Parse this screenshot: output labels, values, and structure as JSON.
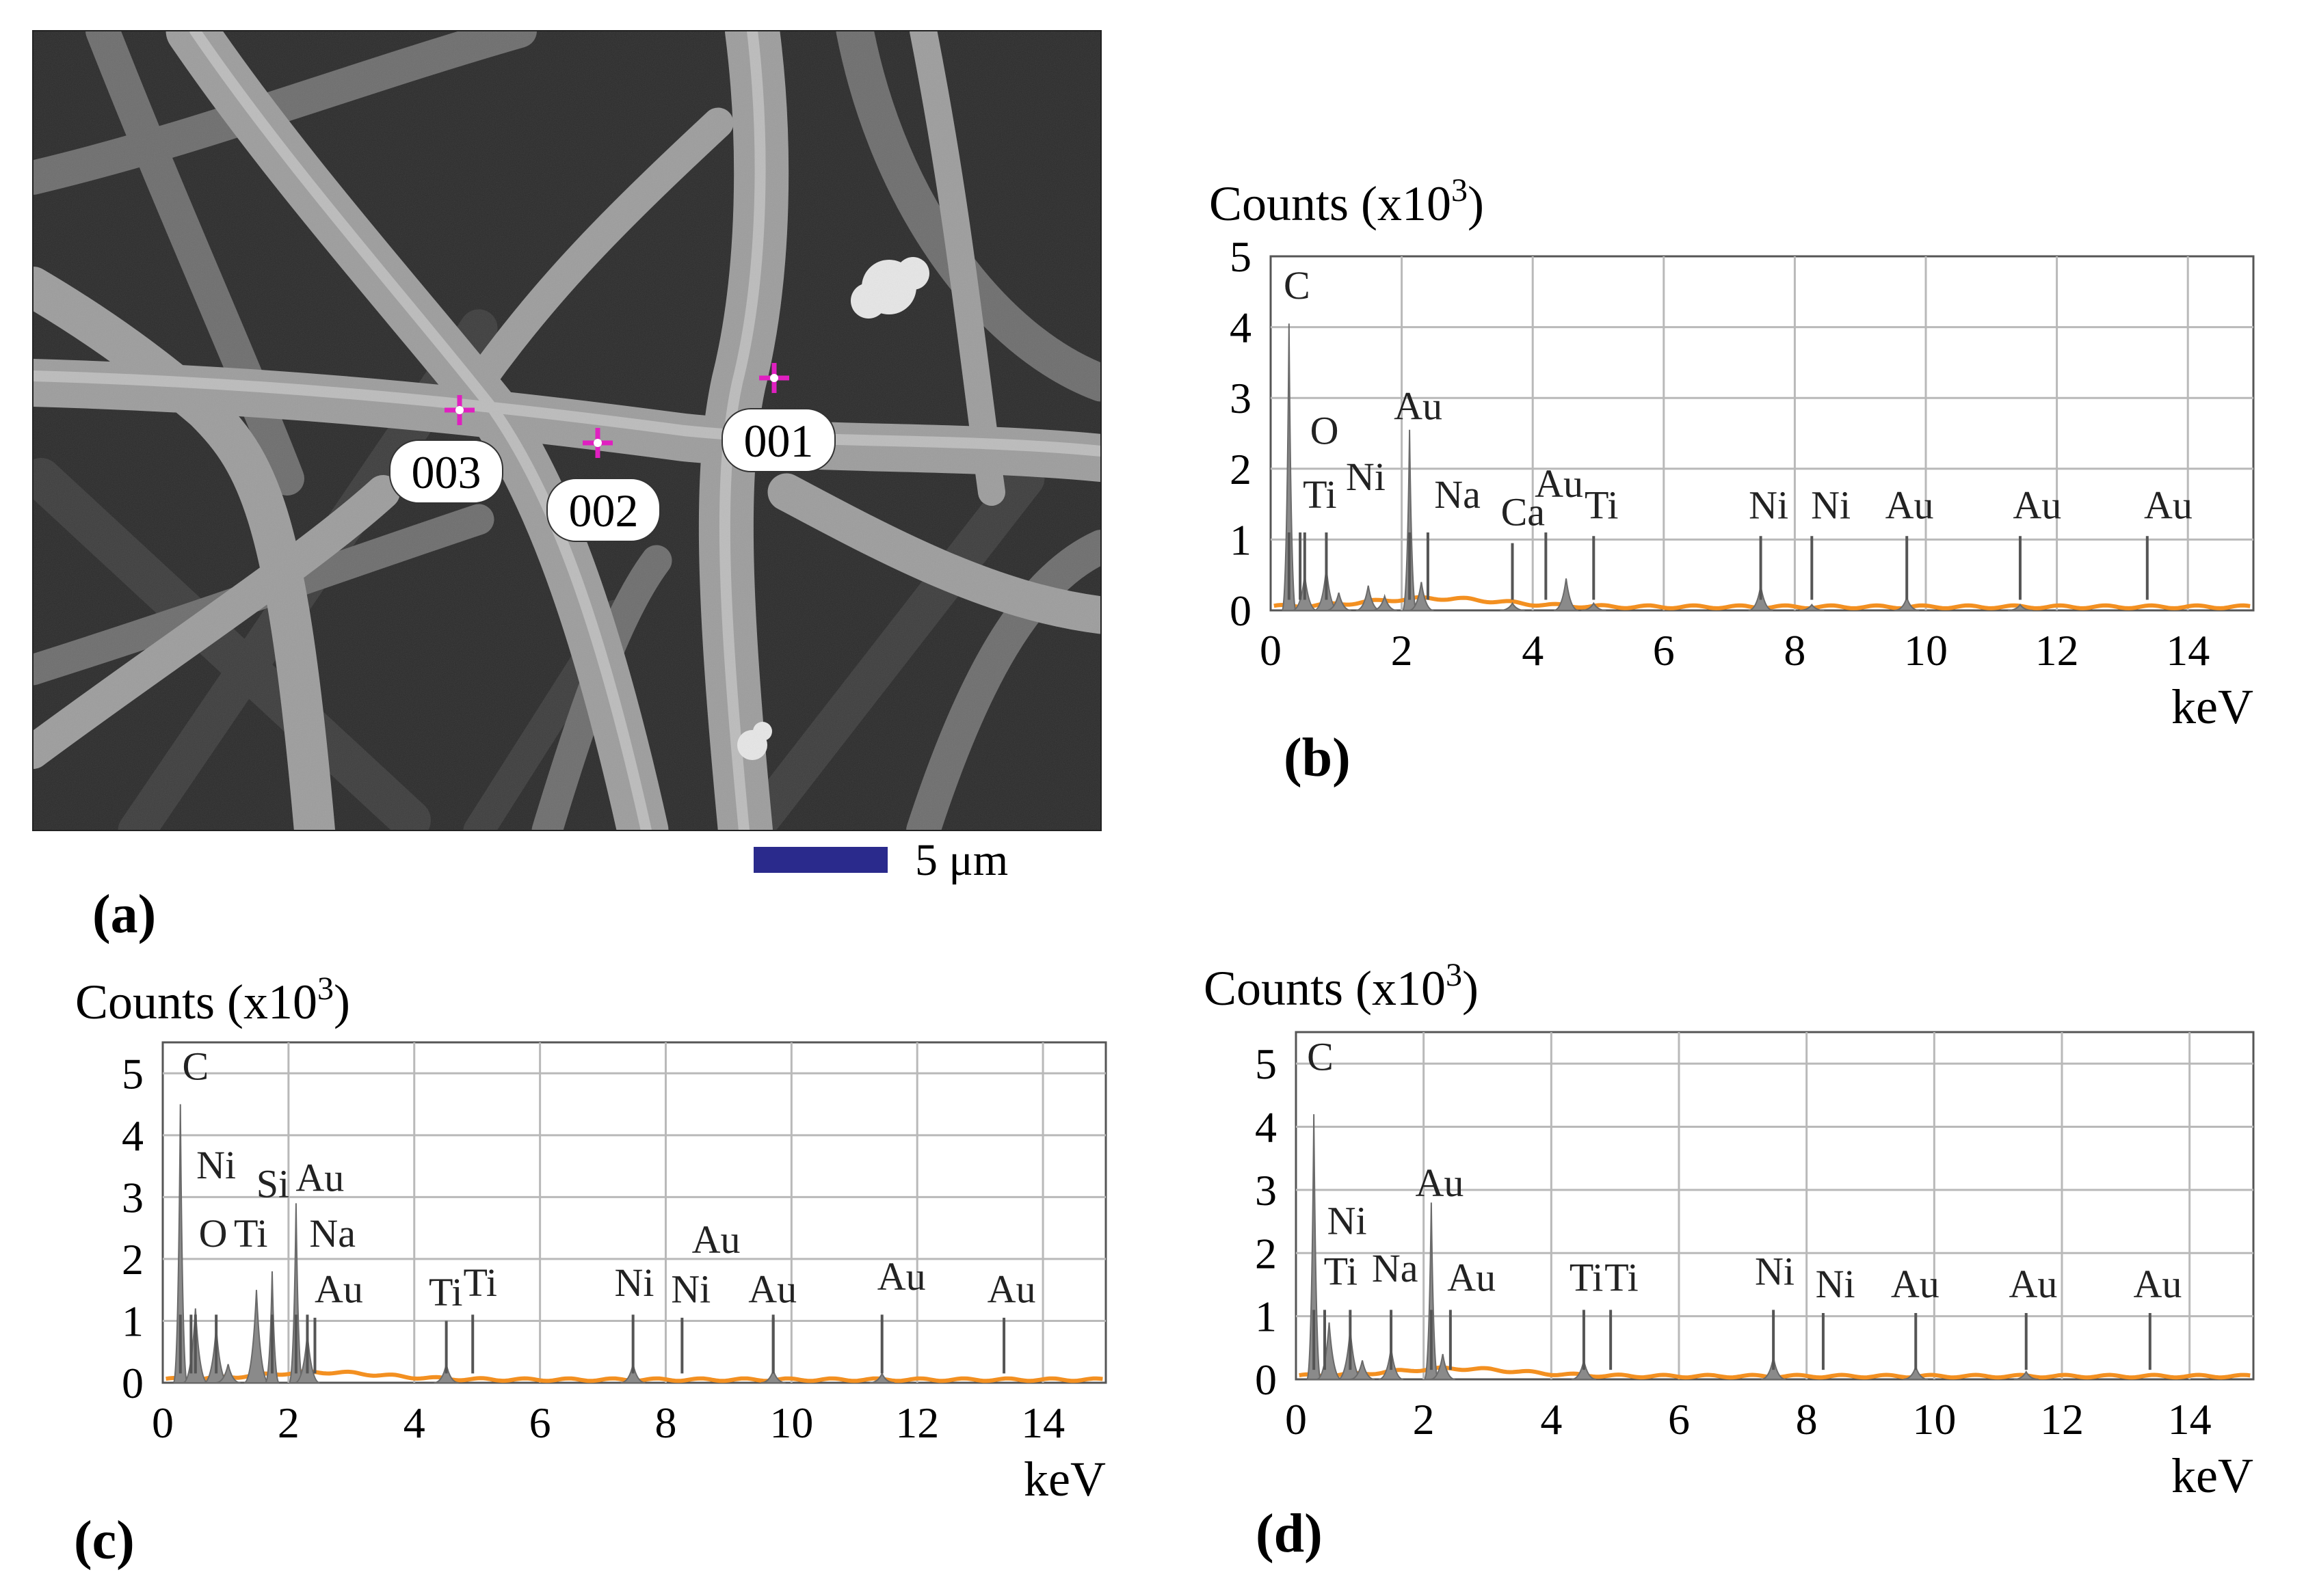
{
  "panel_labels": {
    "a": "(a)",
    "b": "(b)",
    "c": "(c)",
    "d": "(d)"
  },
  "micrograph": {
    "points": [
      "001",
      "002",
      "003"
    ],
    "scale_bar_label": "5 μm",
    "marker_color": "#e020c0",
    "scale_bar_color": "#2a2a8c"
  },
  "spectrum_colors": {
    "background_trace": "#f39021",
    "peak_fill": "#8a8a8a",
    "grid": "#b9b9b9"
  },
  "chart_data": [
    {
      "id": "b",
      "type": "area",
      "ylabel": "Counts (x10",
      "ylabel_sup": "3",
      "ylabel_end": ")",
      "xlabel": "keV",
      "xlim": [
        0,
        15
      ],
      "ylim": [
        0,
        5
      ],
      "xticks": [
        "0",
        "2",
        "4",
        "6",
        "8",
        "10",
        "12",
        "14"
      ],
      "yticks": [
        "0",
        "1",
        "2",
        "3",
        "4",
        "5"
      ],
      "grid": true,
      "peaks": [
        {
          "x": 0.28,
          "y": 4.05
        },
        {
          "x": 0.52,
          "y": 0.5
        },
        {
          "x": 0.85,
          "y": 0.6
        },
        {
          "x": 1.04,
          "y": 0.25
        },
        {
          "x": 1.49,
          "y": 0.35
        },
        {
          "x": 1.74,
          "y": 0.2
        },
        {
          "x": 2.12,
          "y": 2.55
        },
        {
          "x": 2.3,
          "y": 0.4
        },
        {
          "x": 3.69,
          "y": 0.1
        },
        {
          "x": 4.51,
          "y": 0.45
        },
        {
          "x": 4.93,
          "y": 0.1
        },
        {
          "x": 7.48,
          "y": 0.35
        },
        {
          "x": 8.26,
          "y": 0.08
        },
        {
          "x": 9.71,
          "y": 0.18
        },
        {
          "x": 11.44,
          "y": 0.08
        }
      ],
      "labels": [
        {
          "text": "C",
          "x": 0.4,
          "y": 4.4,
          "line": 0.28
        },
        {
          "text": "O",
          "x": 0.82,
          "y": 2.35,
          "line": 0.52
        },
        {
          "text": "Ti",
          "x": 0.75,
          "y": 1.45,
          "line": 0.45
        },
        {
          "text": "Ni",
          "x": 1.45,
          "y": 1.7,
          "line": 0.85
        },
        {
          "text": "Au",
          "x": 2.25,
          "y": 2.7,
          "line": 2.12
        },
        {
          "text": "Na",
          "x": 2.85,
          "y": 1.45,
          "line": 2.4
        },
        {
          "text": "Ca",
          "x": 3.85,
          "y": 1.2,
          "line": 3.69
        },
        {
          "text": "Au",
          "x": 4.4,
          "y": 1.6,
          "line": 4.2
        },
        {
          "text": "Ti",
          "x": 5.05,
          "y": 1.3,
          "line": 4.93
        },
        {
          "text": "Ni",
          "x": 7.6,
          "y": 1.3,
          "line": 7.48
        },
        {
          "text": "Ni",
          "x": 8.55,
          "y": 1.3,
          "line": 8.26
        },
        {
          "text": "Au",
          "x": 9.75,
          "y": 1.3,
          "line": 9.71
        },
        {
          "text": "Au",
          "x": 11.7,
          "y": 1.3,
          "line": 11.44
        },
        {
          "text": "Au",
          "x": 13.7,
          "y": 1.3,
          "line": 13.38
        }
      ]
    },
    {
      "id": "c",
      "type": "area",
      "ylabel": "Counts (x10",
      "ylabel_sup": "3",
      "ylabel_end": ")",
      "xlabel": "keV",
      "xlim": [
        0,
        15
      ],
      "ylim": [
        0,
        5.5
      ],
      "xticks": [
        "0",
        "2",
        "4",
        "6",
        "8",
        "10",
        "12",
        "14"
      ],
      "yticks": [
        "0",
        "1",
        "2",
        "3",
        "4",
        "5"
      ],
      "grid": true,
      "peaks": [
        {
          "x": 0.28,
          "y": 4.5
        },
        {
          "x": 0.52,
          "y": 1.2
        },
        {
          "x": 0.85,
          "y": 0.9
        },
        {
          "x": 1.04,
          "y": 0.3
        },
        {
          "x": 1.49,
          "y": 1.5
        },
        {
          "x": 1.74,
          "y": 1.8
        },
        {
          "x": 2.12,
          "y": 2.9
        },
        {
          "x": 2.3,
          "y": 0.8
        },
        {
          "x": 4.51,
          "y": 0.3
        },
        {
          "x": 7.48,
          "y": 0.3
        },
        {
          "x": 9.71,
          "y": 0.2
        },
        {
          "x": 11.44,
          "y": 0.15
        }
      ],
      "labels": [
        {
          "text": "C",
          "x": 0.52,
          "y": 4.9,
          "line": 0.28
        },
        {
          "text": "Ni",
          "x": 0.85,
          "y": 3.3,
          "line": 0.85
        },
        {
          "text": "Si",
          "x": 1.75,
          "y": 3.0,
          "line": 1.74
        },
        {
          "text": "Au",
          "x": 2.5,
          "y": 3.1,
          "line": 2.12
        },
        {
          "text": "O",
          "x": 0.8,
          "y": 2.2,
          "line": 0.52
        },
        {
          "text": "Ti",
          "x": 1.4,
          "y": 2.2,
          "line": 0.45
        },
        {
          "text": "Na",
          "x": 2.7,
          "y": 2.2,
          "line": 2.3
        },
        {
          "text": "Au",
          "x": 2.8,
          "y": 1.3,
          "line": 2.42
        },
        {
          "text": "Ti",
          "x": 4.5,
          "y": 1.25,
          "line": 4.51
        },
        {
          "text": "Ti",
          "x": 5.05,
          "y": 1.4,
          "line": 4.93
        },
        {
          "text": "Ni",
          "x": 7.5,
          "y": 1.4,
          "line": 7.48
        },
        {
          "text": "Au",
          "x": 8.8,
          "y": 2.1,
          "line": 9.71
        },
        {
          "text": "Ni",
          "x": 8.4,
          "y": 1.3,
          "line": 8.26
        },
        {
          "text": "Au",
          "x": 9.7,
          "y": 1.3,
          "line": 9.71
        },
        {
          "text": "Au",
          "x": 11.75,
          "y": 1.5,
          "line": 11.44
        },
        {
          "text": "Au",
          "x": 13.5,
          "y": 1.3,
          "line": 13.38
        }
      ]
    },
    {
      "id": "d",
      "type": "area",
      "ylabel": "Counts (x10",
      "ylabel_sup": "3",
      "ylabel_end": ")",
      "xlabel": "keV",
      "xlim": [
        0,
        15
      ],
      "ylim": [
        0,
        5.5
      ],
      "xticks": [
        "0",
        "2",
        "4",
        "6",
        "8",
        "10",
        "12",
        "14"
      ],
      "yticks": [
        "0",
        "1",
        "2",
        "3",
        "4",
        "5"
      ],
      "grid": true,
      "peaks": [
        {
          "x": 0.28,
          "y": 4.2
        },
        {
          "x": 0.52,
          "y": 0.9
        },
        {
          "x": 0.85,
          "y": 0.8
        },
        {
          "x": 1.04,
          "y": 0.3
        },
        {
          "x": 1.49,
          "y": 0.5
        },
        {
          "x": 2.12,
          "y": 2.8
        },
        {
          "x": 2.3,
          "y": 0.4
        },
        {
          "x": 4.51,
          "y": 0.3
        },
        {
          "x": 7.48,
          "y": 0.35
        },
        {
          "x": 9.71,
          "y": 0.2
        },
        {
          "x": 11.44,
          "y": 0.12
        }
      ],
      "labels": [
        {
          "text": "C",
          "x": 0.38,
          "y": 4.9,
          "line": 0.28
        },
        {
          "text": "Ni",
          "x": 0.8,
          "y": 2.3,
          "line": 0.85
        },
        {
          "text": "Au",
          "x": 2.25,
          "y": 2.9,
          "line": 2.12
        },
        {
          "text": "Ti",
          "x": 0.7,
          "y": 1.5,
          "line": 0.45
        },
        {
          "text": "Na",
          "x": 1.55,
          "y": 1.55,
          "line": 1.49
        },
        {
          "text": "Au",
          "x": 2.75,
          "y": 1.4,
          "line": 2.42
        },
        {
          "text": "Ti",
          "x": 4.55,
          "y": 1.4,
          "line": 4.51
        },
        {
          "text": "Ti",
          "x": 5.1,
          "y": 1.4,
          "line": 4.93
        },
        {
          "text": "Ni",
          "x": 7.5,
          "y": 1.5,
          "line": 7.48
        },
        {
          "text": "Ni",
          "x": 8.45,
          "y": 1.3,
          "line": 8.26
        },
        {
          "text": "Au",
          "x": 9.7,
          "y": 1.3,
          "line": 9.71
        },
        {
          "text": "Au",
          "x": 11.55,
          "y": 1.3,
          "line": 11.44
        },
        {
          "text": "Au",
          "x": 13.5,
          "y": 1.3,
          "line": 13.38
        }
      ]
    }
  ]
}
